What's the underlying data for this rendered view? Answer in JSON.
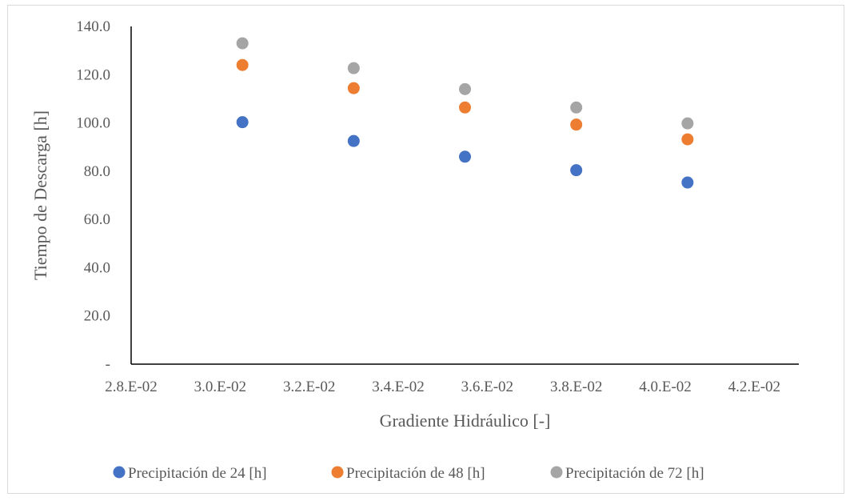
{
  "chart_data": {
    "type": "scatter",
    "title": "",
    "xlabel": "Gradiente Hidráulico [-]",
    "ylabel": "Tiempo de Descarga [h]",
    "xlim": [
      0.028,
      0.043
    ],
    "ylim": [
      0,
      140
    ],
    "x_ticks": [
      0.028,
      0.03,
      0.032,
      0.034,
      0.036,
      0.038,
      0.04,
      0.042
    ],
    "x_tick_labels": [
      "2.8.E-02",
      "3.0.E-02",
      "3.2.E-02",
      "3.4.E-02",
      "3.6.E-02",
      "3.8.E-02",
      "4.0.E-02",
      "4.2.E-02"
    ],
    "y_ticks": [
      0,
      20,
      40,
      60,
      80,
      100,
      120,
      140
    ],
    "y_tick_labels": [
      "-",
      "20.0",
      "40.0",
      "60.0",
      "80.0",
      "100.0",
      "120.0",
      "140.0"
    ],
    "grid": false,
    "legend_position": "bottom",
    "series": [
      {
        "name": "Precipitación de 24 [h]",
        "color": "#4472c4",
        "x": [
          0.0305,
          0.033,
          0.0355,
          0.038,
          0.0405
        ],
        "y": [
          100.3,
          92.5,
          86.0,
          80.4,
          75.3
        ]
      },
      {
        "name": "Precipitación de 48 [h]",
        "color": "#ed7d31",
        "x": [
          0.0305,
          0.033,
          0.0355,
          0.038,
          0.0405
        ],
        "y": [
          124.0,
          114.4,
          106.4,
          99.3,
          93.2
        ]
      },
      {
        "name": "Precipitación de 72 [h]",
        "color": "#a5a5a5",
        "x": [
          0.0305,
          0.033,
          0.0355,
          0.038,
          0.0405
        ],
        "y": [
          133.0,
          122.7,
          114.0,
          106.4,
          99.8
        ]
      }
    ]
  }
}
